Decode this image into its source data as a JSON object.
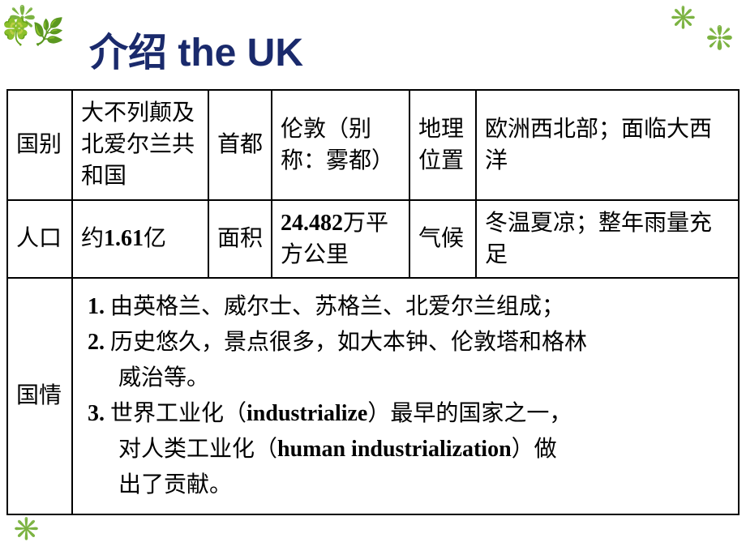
{
  "decorations": {
    "flower_green": "❇️",
    "flower_green2": "✳️",
    "leaves": "🍀🌿"
  },
  "title": "介绍 the UK",
  "table": {
    "row1": {
      "label1": "国别",
      "value1": "大不列颠及北爱尔兰共和国",
      "label2": "首都",
      "value2": "伦敦（别称：雾都）",
      "label3": "地理位置",
      "value3": "欧洲西北部；面临大西洋"
    },
    "row2": {
      "label1": "人口",
      "value1_prefix": "约",
      "value1_bold": "1.61",
      "value1_suffix": "亿",
      "label2": "面积",
      "value2_bold": "24.482",
      "value2_suffix": "万平方公里",
      "label3": "气候",
      "value3": "冬温夏凉；整年雨量充足"
    },
    "row3": {
      "label": "国情",
      "item1_num": "1. ",
      "item1_text": "由英格兰、威尔士、苏格兰、北爱尔兰组成；",
      "item2_num": "2. ",
      "item2_text": "历史悠久，景点很多，如大本钟、伦敦塔和格林",
      "item2_cont": "威治等。",
      "item3_num": "3. ",
      "item3_text1": "世界工业化（",
      "item3_bold1": "industrialize",
      "item3_text2": "）最早的国家之一，",
      "item3_cont1": "对人类工业化（",
      "item3_bold2": "human industrialization",
      "item3_cont2": "）做",
      "item3_cont3": "出了贡献。"
    }
  },
  "colors": {
    "title_color": "#1a2a6c",
    "border_color": "#000000",
    "text_color": "#000000",
    "background": "#ffffff"
  },
  "typography": {
    "title_fontsize": 48,
    "cell_fontsize": 28,
    "title_family": "SimHei",
    "body_family": "SimSun"
  }
}
